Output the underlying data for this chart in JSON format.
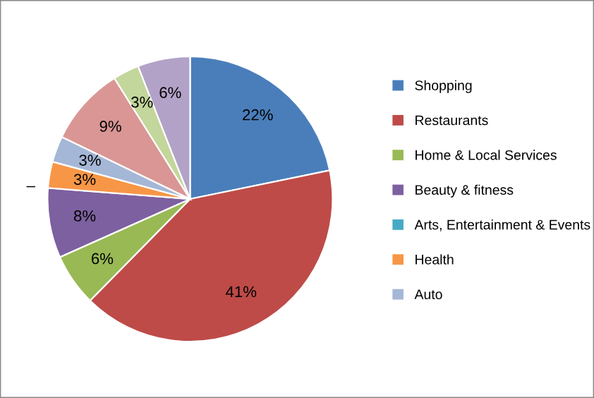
{
  "chart_data": {
    "type": "pie",
    "categories": [
      "Shopping",
      "Restaurants",
      "Home & Local Services",
      "Beauty & fitness",
      "Arts, Entertainment & Events",
      "Health",
      "Auto",
      null,
      null,
      null
    ],
    "values": [
      22,
      41,
      6,
      8,
      0,
      3,
      3,
      9,
      3,
      6
    ],
    "value_labels": [
      "22%",
      "41%",
      "6%",
      "8%",
      "–",
      "3%",
      "3%",
      "9%",
      "3%",
      "6%"
    ],
    "colors": [
      "#4a7ebb",
      "#be4b48",
      "#98b954",
      "#7d60a0",
      "#46aac5",
      "#f79646",
      "#a5b7d6",
      "#d99694",
      "#c3d69b",
      "#b3a2c7"
    ],
    "legend": "right"
  }
}
